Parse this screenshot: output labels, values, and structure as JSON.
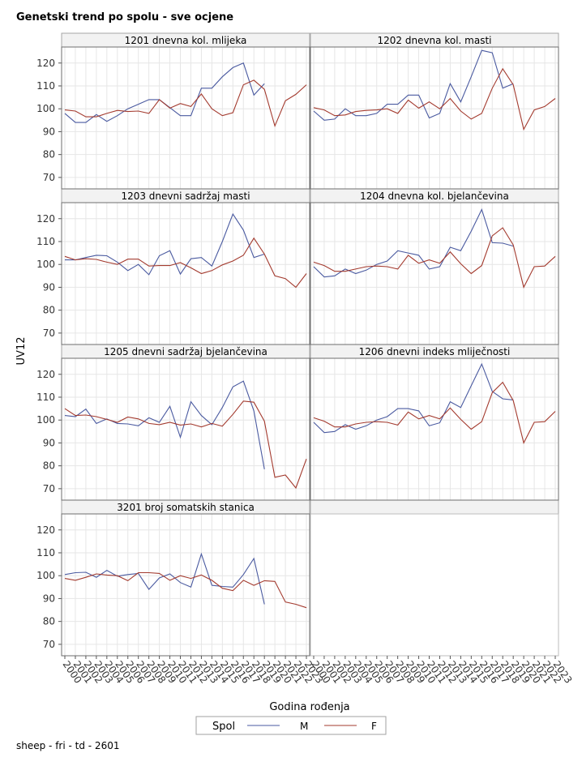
{
  "chart_data": {
    "type": "line",
    "title": "Genetski trend po spolu - sve ocjene",
    "xlabel": "Godina rođenja",
    "ylabel": "UV12",
    "ylim": [
      65,
      127
    ],
    "yticks": [
      70,
      80,
      90,
      100,
      110,
      120
    ],
    "x": [
      "2000",
      "2001",
      "2002",
      "2003",
      "2004",
      "2005",
      "2006",
      "2007",
      "2008",
      "2009",
      "2010",
      "2011",
      "2012",
      "2013",
      "2014",
      "2015",
      "2016",
      "2017",
      "2018",
      "2019",
      "2020",
      "2021",
      "2022",
      "2023"
    ],
    "x_tick_labels": [
      "2000",
      "2001",
      "2002",
      "2003",
      "2004",
      "2005",
      "2006",
      "2007",
      "2008",
      "2009",
      "2010",
      "2011",
      "2012",
      "2013",
      "2014",
      "2015",
      "2016",
      "2017",
      "2018",
      "2019",
      "2020",
      "2021",
      "2022",
      "2023"
    ],
    "legend": {
      "title": "Spol",
      "position": "bottom",
      "entries": [
        {
          "name": "M",
          "color": "#4a5aa0"
        },
        {
          "name": "F",
          "color": "#a33a2e"
        }
      ]
    },
    "panels": [
      {
        "title": "1201 dnevna kol. mlijeka",
        "series": [
          {
            "name": "M",
            "values": [
              98,
              94,
              94,
              97.5,
              94.5,
              97,
              100,
              102,
              104,
              104,
              100.5,
              97,
              97,
              109,
              109,
              114,
              118,
              120,
              106,
              111,
              null,
              null,
              null,
              null
            ]
          },
          {
            "name": "F",
            "values": [
              99.5,
              99,
              96.5,
              96.5,
              98,
              99.3,
              98.8,
              99,
              98,
              104,
              100.3,
              102.3,
              101,
              106.5,
              100,
              97,
              98.3,
              110.5,
              112.5,
              108.5,
              92.5,
              103.5,
              106.3,
              110.5
            ]
          }
        ]
      },
      {
        "title": "1202 dnevna kol. masti",
        "series": [
          {
            "name": "M",
            "values": [
              99,
              95,
              95.5,
              100,
              97,
              97,
              98,
              102,
              102,
              106,
              106,
              96,
              98,
              111,
              103,
              114,
              125.5,
              124.5,
              109,
              111,
              null,
              null,
              null,
              null
            ]
          },
          {
            "name": "F",
            "values": [
              100.5,
              99.5,
              97,
              97.3,
              98.8,
              99.3,
              99.5,
              100,
              98,
              103.8,
              100.3,
              103,
              100,
              104.5,
              99,
              95.5,
              98,
              109,
              117.5,
              110.5,
              91,
              99.5,
              101,
              104.5
            ]
          }
        ]
      },
      {
        "title": "1203 dnevni sadržaj masti",
        "series": [
          {
            "name": "M",
            "values": [
              102,
              102,
              103,
              104,
              103.8,
              101,
              97.3,
              100,
              95.5,
              103.8,
              106,
              95.8,
              102.5,
              103,
              99.3,
              110,
              122,
              115,
              103,
              104.5,
              null,
              null,
              null,
              null
            ]
          },
          {
            "name": "F",
            "values": [
              103.5,
              102,
              102.5,
              102.2,
              101,
              100,
              102.3,
              102.3,
              99.3,
              99.5,
              99.5,
              100.8,
              98.5,
              96,
              97.3,
              99.8,
              101.5,
              104,
              111.5,
              104.5,
              95,
              93.8,
              90,
              96
            ]
          }
        ]
      },
      {
        "title": "1204 dnevna kol. bjelančevina",
        "series": [
          {
            "name": "M",
            "values": [
              99,
              94.5,
              95,
              98,
              96,
              97.5,
              100,
              101.5,
              106,
              105,
              104,
              98,
              99,
              107.5,
              106,
              114.5,
              124,
              109.5,
              109.3,
              108,
              null,
              null,
              null,
              null
            ]
          },
          {
            "name": "F",
            "values": [
              101,
              99.5,
              97,
              97,
              98,
              99,
              99.3,
              99,
              98,
              104,
              100.5,
              102,
              100.5,
              105.5,
              100.3,
              96,
              99.5,
              112.5,
              116,
              108.5,
              90,
              99,
              99.3,
              103.5
            ]
          }
        ]
      },
      {
        "title": "1205 dnevni sadržaj bjelančevina",
        "series": [
          {
            "name": "M",
            "values": [
              102,
              101.5,
              104.8,
              98.5,
              100.5,
              98.5,
              98.3,
              97.5,
              101,
              99,
              106,
              92.5,
              108,
              102,
              98,
              105.5,
              114.5,
              117,
              104,
              78.5,
              null,
              null,
              null,
              null
            ]
          },
          {
            "name": "F",
            "values": [
              105,
              102,
              102.2,
              101.5,
              100.3,
              99,
              101.3,
              100.5,
              98.5,
              98,
              99,
              97.8,
              98.3,
              97,
              98.5,
              97.3,
              102.5,
              108.3,
              107.8,
              99.5,
              75,
              76,
              70.3,
              83
            ]
          }
        ]
      },
      {
        "title": "1206 dnevni indeks mliječnosti",
        "series": [
          {
            "name": "M",
            "values": [
              99,
              94.5,
              95,
              98,
              96,
              97.5,
              100,
              101.5,
              105,
              105,
              104,
              97.5,
              98.8,
              108,
              105.5,
              115,
              124.5,
              112.5,
              109.3,
              108.8,
              null,
              null,
              null,
              null
            ]
          },
          {
            "name": "F",
            "values": [
              101,
              99.5,
              97,
              97,
              98.3,
              99,
              99.3,
              99,
              97.8,
              103.5,
              100.5,
              102,
              100.5,
              105.3,
              100.3,
              96,
              99.3,
              112,
              116.5,
              108.5,
              90,
              99,
              99.3,
              103.8
            ]
          }
        ]
      },
      {
        "title": "3201 broj somatskih stanica",
        "series": [
          {
            "name": "M",
            "values": [
              100.5,
              101.3,
              101.5,
              99.3,
              102.3,
              99.8,
              100.5,
              101,
              94,
              99,
              100.8,
              97,
              95,
              109.5,
              95.8,
              95.3,
              95,
              100.5,
              107.5,
              87.5,
              null,
              null,
              null,
              null
            ]
          },
          {
            "name": "F",
            "values": [
              98.8,
              98,
              99.3,
              100.8,
              100.3,
              100,
              97.8,
              101.3,
              101.3,
              101,
              98,
              100,
              98.8,
              100.3,
              98,
              94.5,
              93.5,
              98,
              95.8,
              97.8,
              97.5,
              88.5,
              87.5,
              86
            ]
          }
        ]
      }
    ]
  },
  "footer": "sheep - fri - td - 2601"
}
